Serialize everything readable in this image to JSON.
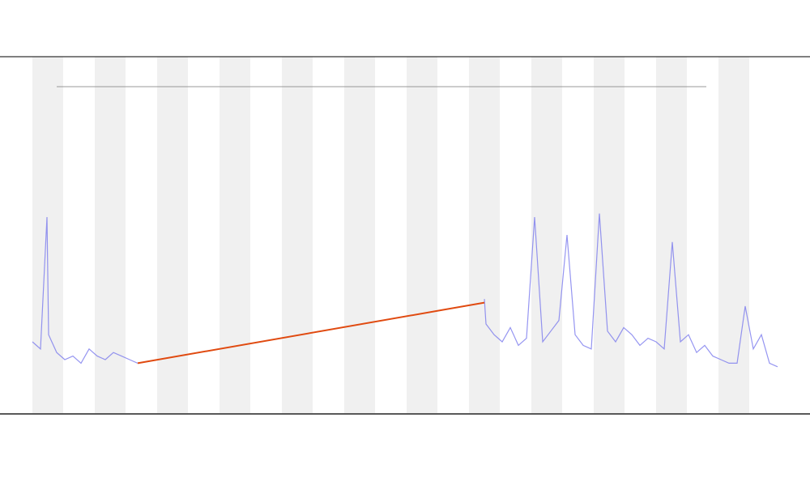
{
  "chart_data": {
    "type": "line",
    "x": [
      4,
      5,
      5.8,
      6,
      7,
      8,
      9,
      10,
      11,
      12,
      13,
      14,
      15,
      16,
      17,
      38,
      59.8,
      60,
      61,
      62,
      63,
      64,
      65,
      66,
      67,
      68,
      69,
      70,
      71,
      72,
      73,
      74,
      75,
      76,
      77,
      78,
      79,
      80,
      81,
      82,
      83,
      84,
      85,
      86,
      87,
      88,
      89,
      90,
      91,
      92,
      93,
      94,
      95,
      96
    ],
    "series": [
      {
        "color": "#7b7bee",
        "values": [
          20,
          18,
          55,
          22,
          17,
          15,
          16,
          14,
          18,
          16,
          15,
          17,
          16,
          15,
          14,
          null,
          32,
          25,
          22,
          20,
          24,
          19,
          21,
          55,
          20,
          23,
          26,
          50,
          22,
          19,
          18,
          56,
          23,
          20,
          24,
          22,
          19,
          21,
          20,
          18,
          48,
          20,
          22,
          17,
          19,
          16,
          15,
          14,
          14,
          30,
          18,
          22,
          14,
          13
        ]
      }
    ],
    "segment": {
      "color": "#e04a10",
      "x": [
        17,
        59.8
      ],
      "values": [
        14,
        31
      ]
    },
    "xlim": [
      0,
      100
    ],
    "ylim": [
      0,
      100
    ],
    "bands": true
  }
}
